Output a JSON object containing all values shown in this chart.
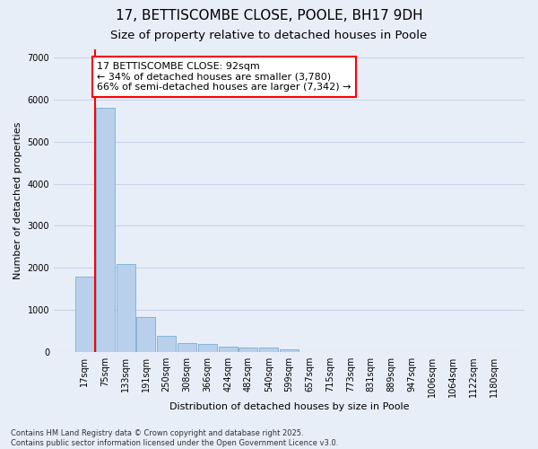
{
  "title": "17, BETTISCOMBE CLOSE, POOLE, BH17 9DH",
  "subtitle": "Size of property relative to detached houses in Poole",
  "xlabel": "Distribution of detached houses by size in Poole",
  "ylabel": "Number of detached properties",
  "categories": [
    "17sqm",
    "75sqm",
    "133sqm",
    "191sqm",
    "250sqm",
    "308sqm",
    "366sqm",
    "424sqm",
    "482sqm",
    "540sqm",
    "599sqm",
    "657sqm",
    "715sqm",
    "773sqm",
    "831sqm",
    "889sqm",
    "947sqm",
    "1006sqm",
    "1064sqm",
    "1122sqm",
    "1180sqm"
  ],
  "values": [
    1780,
    5820,
    2090,
    820,
    370,
    215,
    190,
    120,
    95,
    90,
    65,
    0,
    0,
    0,
    0,
    0,
    0,
    0,
    0,
    0,
    0
  ],
  "bar_color": "#b8d0eb",
  "bar_edge_color": "#7aaed4",
  "vline_x_pos": 0.5,
  "vline_color": "red",
  "annotation_text": "17 BETTISCOMBE CLOSE: 92sqm\n← 34% of detached houses are smaller (3,780)\n66% of semi-detached houses are larger (7,342) →",
  "annotation_box_color": "white",
  "annotation_box_edge_color": "red",
  "ylim": [
    0,
    7200
  ],
  "yticks": [
    0,
    1000,
    2000,
    3000,
    4000,
    5000,
    6000,
    7000
  ],
  "background_color": "#e8eef8",
  "grid_color": "#c8d4e8",
  "footnote": "Contains HM Land Registry data © Crown copyright and database right 2025.\nContains public sector information licensed under the Open Government Licence v3.0.",
  "title_fontsize": 11,
  "subtitle_fontsize": 9.5,
  "axis_label_fontsize": 8,
  "tick_fontsize": 7,
  "annotation_fontsize": 8
}
